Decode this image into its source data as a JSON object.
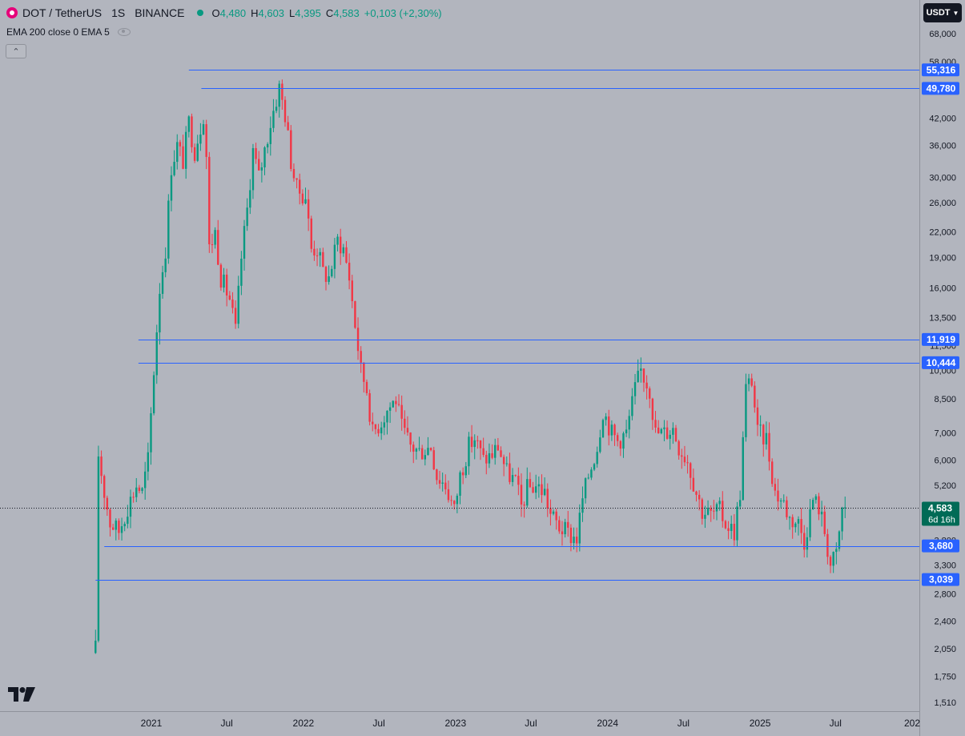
{
  "header": {
    "symbol": "DOT / TetherUS",
    "interval": "1S",
    "exchange": "BINANCE",
    "ohlc": [
      {
        "label": "O",
        "value": "4,480"
      },
      {
        "label": "H",
        "value": "4,603"
      },
      {
        "label": "L",
        "value": "4,395"
      },
      {
        "label": "C",
        "value": "4,583"
      }
    ],
    "change": "+0,103 (+2,30%)",
    "indicator": "EMA 200 close 0 EMA 5"
  },
  "toolbar": {
    "collapse_icon": "chevron-up-icon",
    "currency": "USDT",
    "currency_icon": "chevron-down-icon"
  },
  "colors": {
    "background": "#b2b5be",
    "up": "#089981",
    "down": "#f23645",
    "line": "#2962ff",
    "label_bg": "#2962ff",
    "last_price_bg": "#006b56"
  },
  "chart_data": {
    "type": "candlestick",
    "scale": "log",
    "y_ticks": [
      "68,000",
      "58,000",
      "42,000",
      "36,000",
      "30,000",
      "26,000",
      "22,000",
      "19,000",
      "16,000",
      "13,500",
      "11,500",
      "10,000",
      "8,500",
      "7,000",
      "6,000",
      "5,200",
      "4,400",
      "3,800",
      "3,300",
      "2,800",
      "2,400",
      "2,050",
      "1,750",
      "1,510"
    ],
    "x_ticks": [
      {
        "label": "2021",
        "date": "2021-01-01"
      },
      {
        "label": "Jul",
        "date": "2021-07-01"
      },
      {
        "label": "2022",
        "date": "2022-01-01"
      },
      {
        "label": "Jul",
        "date": "2022-07-01"
      },
      {
        "label": "2023",
        "date": "2023-01-01"
      },
      {
        "label": "Jul",
        "date": "2023-07-01"
      },
      {
        "label": "2024",
        "date": "2024-01-01"
      },
      {
        "label": "Jul",
        "date": "2024-07-01"
      },
      {
        "label": "2025",
        "date": "2025-01-01"
      },
      {
        "label": "Jul",
        "date": "2025-07-01"
      },
      {
        "label": "202",
        "date": "2026-01-01"
      }
    ],
    "horizontal_levels": [
      {
        "label": "55,316",
        "value": 55316,
        "from": "2021-04-01"
      },
      {
        "label": "49,780",
        "value": 49780,
        "from": "2021-05-01"
      },
      {
        "label": "11,919",
        "value": 11919,
        "from": "2020-12-01"
      },
      {
        "label": "10,444",
        "value": 10444,
        "from": "2020-12-01"
      },
      {
        "label": "3,680",
        "value": 3680,
        "from": "2020-09-10"
      },
      {
        "label": "3,039",
        "value": 3039,
        "from": "2020-08-20"
      }
    ],
    "last_price": {
      "label": "4,583",
      "value": 4583,
      "countdown": "6d 16h"
    },
    "anchors": [
      [
        "2020-08-20",
        2.05
      ],
      [
        "2020-08-27",
        6.2
      ],
      [
        "2020-09-10",
        5.0
      ],
      [
        "2020-09-24",
        4.2
      ],
      [
        "2020-10-15",
        4.0
      ],
      [
        "2020-11-05",
        4.6
      ],
      [
        "2020-11-26",
        5.2
      ],
      [
        "2020-12-10",
        5.0
      ],
      [
        "2020-12-24",
        6.0
      ],
      [
        "2021-01-07",
        10.0
      ],
      [
        "2021-01-21",
        16.0
      ],
      [
        "2021-02-04",
        20.0
      ],
      [
        "2021-02-18",
        32.0
      ],
      [
        "2021-03-04",
        36.0
      ],
      [
        "2021-03-18",
        33.0
      ],
      [
        "2021-04-01",
        41.0
      ],
      [
        "2021-04-15",
        35.0
      ],
      [
        "2021-05-06",
        43.0
      ],
      [
        "2021-05-13",
        34.0
      ],
      [
        "2021-05-20",
        20.0
      ],
      [
        "2021-06-03",
        22.0
      ],
      [
        "2021-06-17",
        17.0
      ],
      [
        "2021-07-08",
        15.0
      ],
      [
        "2021-07-22",
        12.5
      ],
      [
        "2021-08-05",
        19.0
      ],
      [
        "2021-08-19",
        25.0
      ],
      [
        "2021-09-02",
        35.0
      ],
      [
        "2021-09-16",
        30.0
      ],
      [
        "2021-10-07",
        38.0
      ],
      [
        "2021-10-21",
        44.0
      ],
      [
        "2021-11-04",
        50.0
      ],
      [
        "2021-11-18",
        43.0
      ],
      [
        "2021-12-02",
        33.0
      ],
      [
        "2021-12-16",
        28.0
      ],
      [
        "2022-01-06",
        27.0
      ],
      [
        "2022-01-20",
        20.0
      ],
      [
        "2022-02-03",
        20.0
      ],
      [
        "2022-02-17",
        17.5
      ],
      [
        "2022-03-03",
        17.0
      ],
      [
        "2022-03-24",
        21.0
      ],
      [
        "2022-04-07",
        20.0
      ],
      [
        "2022-04-21",
        17.0
      ],
      [
        "2022-05-05",
        13.0
      ],
      [
        "2022-05-19",
        10.0
      ],
      [
        "2022-06-02",
        9.0
      ],
      [
        "2022-06-16",
        7.0
      ],
      [
        "2022-07-07",
        7.5
      ],
      [
        "2022-07-21",
        8.0
      ],
      [
        "2022-08-11",
        8.5
      ],
      [
        "2022-08-25",
        7.2
      ],
      [
        "2022-09-15",
        6.5
      ],
      [
        "2022-10-06",
        6.3
      ],
      [
        "2022-11-03",
        6.5
      ],
      [
        "2022-11-17",
        5.5
      ],
      [
        "2022-12-08",
        5.2
      ],
      [
        "2022-12-29",
        4.5
      ],
      [
        "2023-01-12",
        5.5
      ],
      [
        "2023-02-02",
        6.5
      ],
      [
        "2023-02-16",
        6.8
      ],
      [
        "2023-03-09",
        6.0
      ],
      [
        "2023-03-30",
        6.2
      ],
      [
        "2023-04-13",
        6.5
      ],
      [
        "2023-05-04",
        5.6
      ],
      [
        "2023-05-25",
        5.3
      ],
      [
        "2023-06-08",
        4.6
      ],
      [
        "2023-06-22",
        5.1
      ],
      [
        "2023-07-13",
        5.2
      ],
      [
        "2023-08-03",
        5.0
      ],
      [
        "2023-08-17",
        4.4
      ],
      [
        "2023-09-07",
        4.1
      ],
      [
        "2023-10-05",
        3.9
      ],
      [
        "2023-10-19",
        3.85
      ],
      [
        "2023-11-02",
        4.8
      ],
      [
        "2023-11-16",
        5.5
      ],
      [
        "2023-12-07",
        6.5
      ],
      [
        "2023-12-21",
        8.0
      ],
      [
        "2024-01-11",
        7.0
      ],
      [
        "2024-01-25",
        6.7
      ],
      [
        "2024-02-15",
        7.0
      ],
      [
        "2024-03-07",
        9.0
      ],
      [
        "2024-03-21",
        10.0
      ],
      [
        "2024-04-11",
        9.0
      ],
      [
        "2024-04-25",
        7.0
      ],
      [
        "2024-05-16",
        7.0
      ],
      [
        "2024-06-06",
        7.2
      ],
      [
        "2024-06-20",
        6.5
      ],
      [
        "2024-07-11",
        6.0
      ],
      [
        "2024-08-01",
        5.0
      ],
      [
        "2024-08-15",
        4.5
      ],
      [
        "2024-09-05",
        4.4
      ],
      [
        "2024-09-26",
        4.5
      ],
      [
        "2024-10-10",
        4.2
      ],
      [
        "2024-10-31",
        4.0
      ],
      [
        "2024-11-14",
        5.0
      ],
      [
        "2024-11-28",
        9.0
      ],
      [
        "2024-12-12",
        9.5
      ],
      [
        "2024-12-26",
        7.0
      ],
      [
        "2025-01-16",
        6.8
      ],
      [
        "2025-02-06",
        5.0
      ],
      [
        "2025-02-27",
        4.7
      ],
      [
        "2025-03-13",
        4.3
      ],
      [
        "2025-04-03",
        4.2
      ],
      [
        "2025-04-17",
        3.8
      ],
      [
        "2025-05-08",
        4.8
      ],
      [
        "2025-05-22",
        4.6
      ],
      [
        "2025-06-05",
        4.0
      ],
      [
        "2025-06-19",
        3.3
      ],
      [
        "2025-07-03",
        3.5
      ],
      [
        "2025-07-17",
        4.5
      ],
      [
        "2025-07-24",
        4.583
      ]
    ]
  }
}
